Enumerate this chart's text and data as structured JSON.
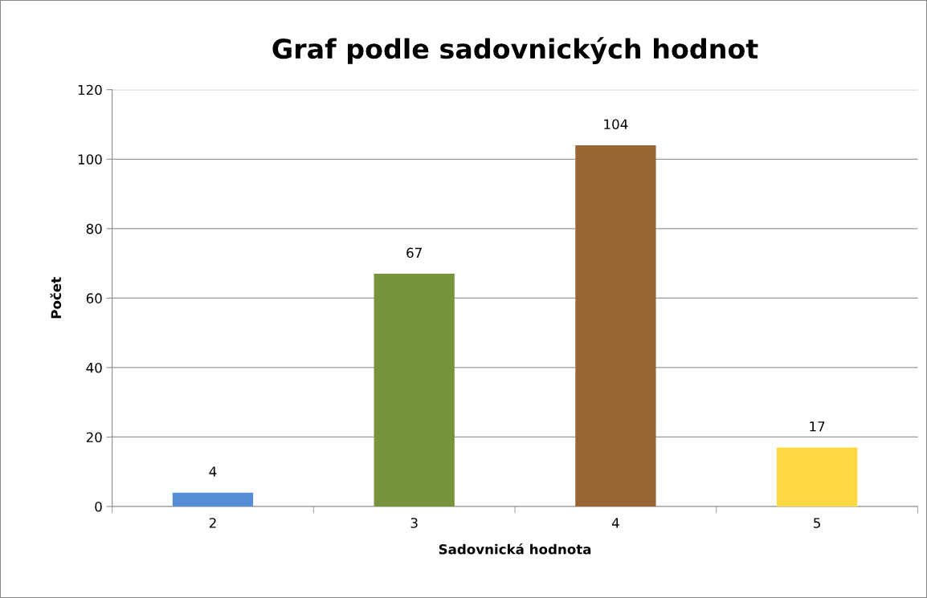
{
  "chart_data": {
    "type": "bar",
    "title": "Graf podle sadovnických hodnot",
    "xlabel": "Sadovnická hodnota",
    "ylabel": "Počet",
    "categories": [
      "2",
      "3",
      "4",
      "5"
    ],
    "values": [
      4,
      67,
      104,
      17
    ],
    "colors": [
      "#558ed5",
      "#77933c",
      "#996633",
      "#ffd944"
    ],
    "ylim": [
      0,
      120
    ],
    "yticks": [
      0,
      20,
      40,
      60,
      80,
      100,
      120
    ],
    "grid": "y",
    "data_labels": true,
    "legend": false
  }
}
